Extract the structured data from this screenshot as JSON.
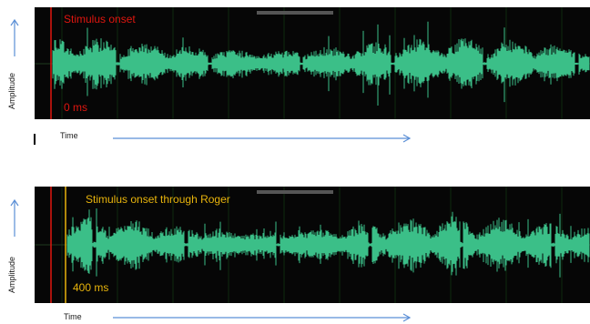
{
  "panels": [
    {
      "id": "top",
      "onset_text": "Stimulus onset",
      "latency_text": "0 ms",
      "marker_color": "#e0160f",
      "waveform_color": "#3bbf88",
      "y_axis_label": "Amplitude",
      "x_axis_label": "Time"
    },
    {
      "id": "bottom",
      "onset_text": "Stimulus onset through Roger",
      "latency_text": "400 ms",
      "marker_color": "#e8b40c",
      "baseline_marker_color": "#e0160f",
      "waveform_color": "#3bbf88",
      "y_axis_label": "Amplitude",
      "x_axis_label": "Time"
    }
  ],
  "colors": {
    "panel_background": "#060606",
    "grid": "#0f2a0f",
    "axis_arrow": "#5b8fd6"
  }
}
